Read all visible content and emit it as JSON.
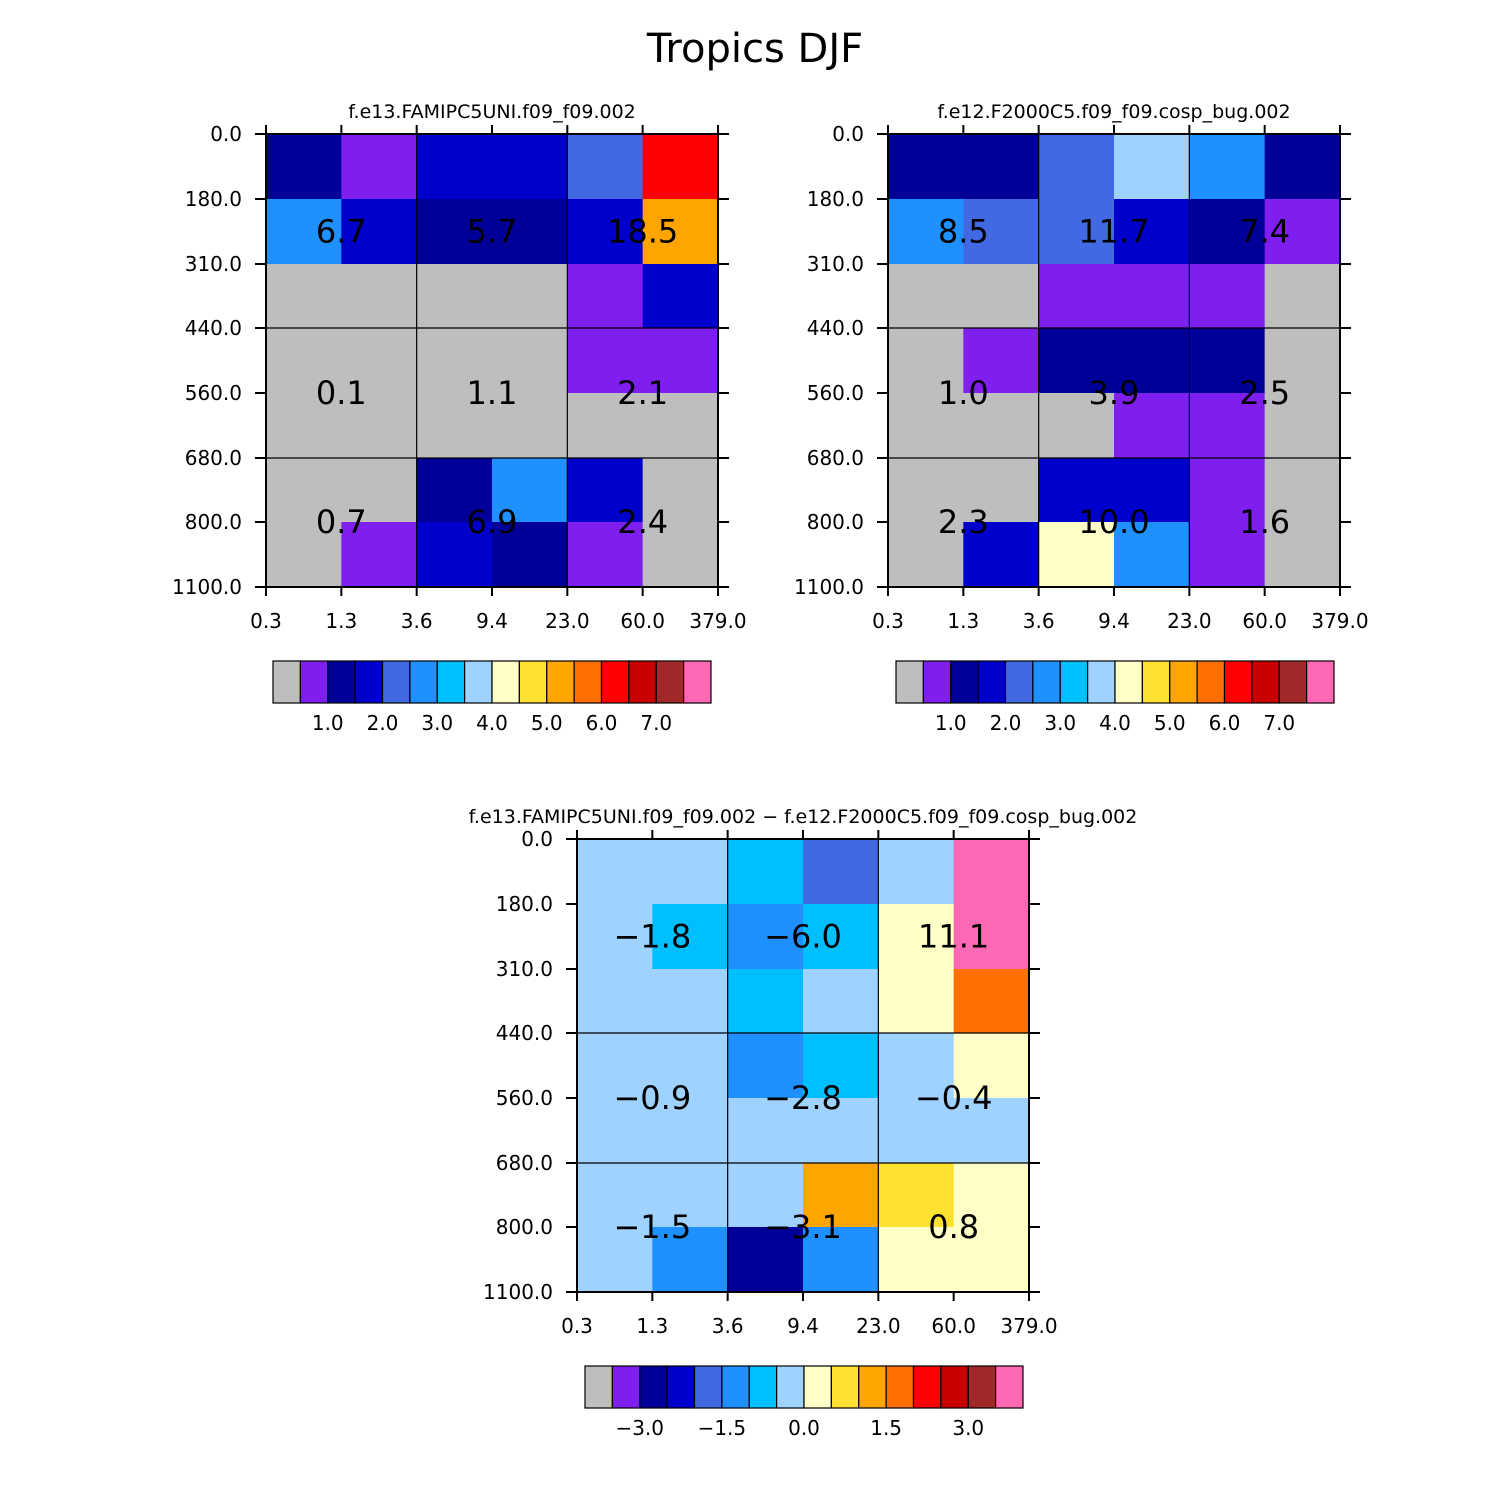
{
  "figure": {
    "title": "Tropics DJF"
  },
  "chart_data": [
    {
      "type": "heatmap",
      "title": "f.e13.FAMIPC5UNI.f09_f09.002",
      "x_tick_labels": [
        "0.3",
        "1.3",
        "3.6",
        "9.4",
        "23.0",
        "60.0",
        "379.0"
      ],
      "y_tick_labels": [
        "0.0",
        "180.0",
        "310.0",
        "440.0",
        "560.0",
        "680.0",
        "800.0",
        "1100.0"
      ],
      "cell_colors": [
        [
          "#000099",
          "#7f1fef",
          "#0000cd",
          "#0000cd",
          "#4169e1",
          "#ff0000"
        ],
        [
          "#1e90ff",
          "#0000cd",
          "#000099",
          "#000099",
          "#0000cd",
          "#ffa500"
        ],
        [
          "#bebebe",
          "#bebebe",
          "#bebebe",
          "#bebebe",
          "#7f1fef",
          "#0000cd"
        ],
        [
          "#bebebe",
          "#bebebe",
          "#bebebe",
          "#bebebe",
          "#7f1fef",
          "#7f1fef"
        ],
        [
          "#bebebe",
          "#bebebe",
          "#bebebe",
          "#bebebe",
          "#bebebe",
          "#bebebe"
        ],
        [
          "#bebebe",
          "#bebebe",
          "#000099",
          "#1e90ff",
          "#0000cd",
          "#bebebe"
        ],
        [
          "#bebebe",
          "#7f1fef",
          "#0000cd",
          "#000099",
          "#7f1fef",
          "#bebebe"
        ]
      ],
      "block_values": [
        [
          "6.7",
          "5.7",
          "18.5"
        ],
        [
          "0.1",
          "1.1",
          "2.1"
        ],
        [
          "0.7",
          "6.9",
          "2.4"
        ]
      ],
      "colorbar": {
        "colors": [
          "#bebebe",
          "#7f1fef",
          "#000099",
          "#0000cd",
          "#4169e1",
          "#1e90ff",
          "#00bfff",
          "#a0d2ff",
          "#ffffc8",
          "#ffe132",
          "#ffa500",
          "#ff6e00",
          "#ff0000",
          "#c80000",
          "#a02828",
          "#ff69b4"
        ],
        "labels": [
          "1.0",
          "2.0",
          "3.0",
          "4.0",
          "5.0",
          "6.0",
          "7.0"
        ],
        "label_boundaries": [
          2,
          4,
          6,
          8,
          10,
          12,
          14
        ]
      }
    },
    {
      "type": "heatmap",
      "title": "f.e12.F2000C5.f09_f09.cosp_bug.002",
      "x_tick_labels": [
        "0.3",
        "1.3",
        "3.6",
        "9.4",
        "23.0",
        "60.0",
        "379.0"
      ],
      "y_tick_labels": [
        "0.0",
        "180.0",
        "310.0",
        "440.0",
        "560.0",
        "680.0",
        "800.0",
        "1100.0"
      ],
      "cell_colors": [
        [
          "#000099",
          "#000099",
          "#4169e1",
          "#a0d2ff",
          "#1e90ff",
          "#000099"
        ],
        [
          "#1e90ff",
          "#4169e1",
          "#4169e1",
          "#0000cd",
          "#000099",
          "#7f1fef"
        ],
        [
          "#bebebe",
          "#bebebe",
          "#7f1fef",
          "#7f1fef",
          "#7f1fef",
          "#bebebe"
        ],
        [
          "#bebebe",
          "#7f1fef",
          "#000099",
          "#000099",
          "#000099",
          "#bebebe"
        ],
        [
          "#bebebe",
          "#bebebe",
          "#bebebe",
          "#7f1fef",
          "#7f1fef",
          "#bebebe"
        ],
        [
          "#bebebe",
          "#bebebe",
          "#0000cd",
          "#0000cd",
          "#7f1fef",
          "#bebebe"
        ],
        [
          "#bebebe",
          "#0000cd",
          "#ffffc8",
          "#1e90ff",
          "#7f1fef",
          "#bebebe"
        ]
      ],
      "block_values": [
        [
          "8.5",
          "11.7",
          "7.4"
        ],
        [
          "1.0",
          "3.9",
          "2.5"
        ],
        [
          "2.3",
          "10.0",
          "1.6"
        ]
      ],
      "colorbar": {
        "colors": [
          "#bebebe",
          "#7f1fef",
          "#000099",
          "#0000cd",
          "#4169e1",
          "#1e90ff",
          "#00bfff",
          "#a0d2ff",
          "#ffffc8",
          "#ffe132",
          "#ffa500",
          "#ff6e00",
          "#ff0000",
          "#c80000",
          "#a02828",
          "#ff69b4"
        ],
        "labels": [
          "1.0",
          "2.0",
          "3.0",
          "4.0",
          "5.0",
          "6.0",
          "7.0"
        ],
        "label_boundaries": [
          2,
          4,
          6,
          8,
          10,
          12,
          14
        ]
      }
    },
    {
      "type": "heatmap",
      "title": "f.e13.FAMIPC5UNI.f09_f09.002 − f.e12.F2000C5.f09_f09.cosp_bug.002",
      "x_tick_labels": [
        "0.3",
        "1.3",
        "3.6",
        "9.4",
        "23.0",
        "60.0",
        "379.0"
      ],
      "y_tick_labels": [
        "0.0",
        "180.0",
        "310.0",
        "440.0",
        "560.0",
        "680.0",
        "800.0",
        "1100.0"
      ],
      "cell_colors": [
        [
          "#a0d2ff",
          "#a0d2ff",
          "#00bfff",
          "#4169e1",
          "#a0d2ff",
          "#ff69b4"
        ],
        [
          "#a0d2ff",
          "#00bfff",
          "#1e90ff",
          "#00bfff",
          "#ffffc8",
          "#ff69b4"
        ],
        [
          "#a0d2ff",
          "#a0d2ff",
          "#00bfff",
          "#a0d2ff",
          "#ffffc8",
          "#ff6e00"
        ],
        [
          "#a0d2ff",
          "#a0d2ff",
          "#1e90ff",
          "#00bfff",
          "#a0d2ff",
          "#ffffc8"
        ],
        [
          "#a0d2ff",
          "#a0d2ff",
          "#a0d2ff",
          "#a0d2ff",
          "#a0d2ff",
          "#a0d2ff"
        ],
        [
          "#a0d2ff",
          "#a0d2ff",
          "#a0d2ff",
          "#ffa500",
          "#ffe132",
          "#ffffc8"
        ],
        [
          "#a0d2ff",
          "#1e90ff",
          "#000099",
          "#1e90ff",
          "#ffffc8",
          "#ffffc8"
        ]
      ],
      "block_values": [
        [
          "−1.8",
          "−6.0",
          "11.1"
        ],
        [
          "−0.9",
          "−2.8",
          "−0.4"
        ],
        [
          "−1.5",
          "−3.1",
          "0.8"
        ]
      ],
      "colorbar": {
        "colors": [
          "#bebebe",
          "#7f1fef",
          "#000099",
          "#0000cd",
          "#4169e1",
          "#1e90ff",
          "#00bfff",
          "#a0d2ff",
          "#ffffc8",
          "#ffe132",
          "#ffa500",
          "#ff6e00",
          "#ff0000",
          "#c80000",
          "#a02828",
          "#ff69b4"
        ],
        "labels": [
          "−3.0",
          "−1.5",
          "0.0",
          "1.5",
          "3.0"
        ],
        "label_boundaries": [
          2,
          5,
          8,
          11,
          14
        ]
      }
    }
  ]
}
